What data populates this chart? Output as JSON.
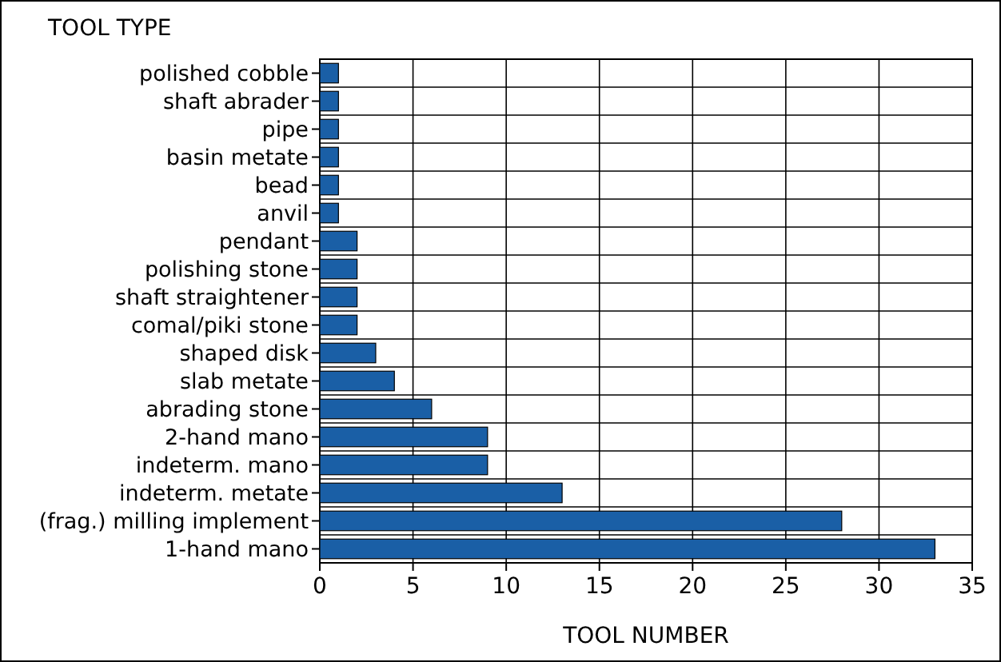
{
  "chart_data": {
    "type": "bar",
    "orientation": "horizontal",
    "ylabel": "TOOL TYPE",
    "xlabel": "TOOL NUMBER",
    "categories": [
      "polished cobble",
      "shaft abrader",
      "pipe",
      "basin metate",
      "bead",
      "anvil",
      "pendant",
      "polishing stone",
      "shaft straightener",
      "comal/piki stone",
      "shaped disk",
      "slab metate",
      "abrading stone",
      "2-hand mano",
      "indeterm. mano",
      "indeterm. metate",
      "(frag.) milling implement",
      "1-hand mano"
    ],
    "values": [
      1,
      1,
      1,
      1,
      1,
      1,
      2,
      2,
      2,
      2,
      3,
      4,
      6,
      9,
      9,
      13,
      28,
      33
    ],
    "color": "#1a5fa6",
    "xlim": [
      0,
      35
    ],
    "xticks": [
      0,
      5,
      10,
      15,
      20,
      25,
      30,
      35
    ],
    "grid": true
  }
}
